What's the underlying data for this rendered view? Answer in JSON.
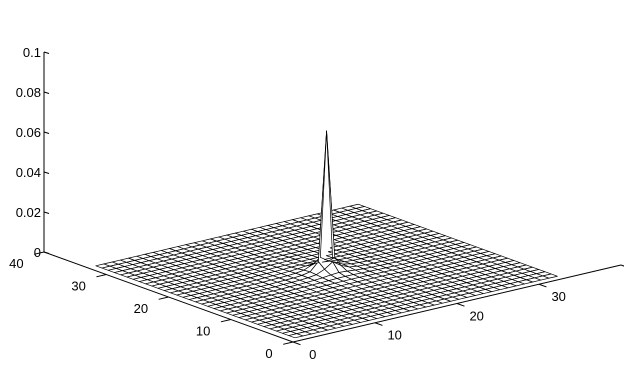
{
  "chart_data": {
    "type": "surface",
    "title": "",
    "xlabel": "",
    "ylabel": "",
    "zlabel": "",
    "xlim": [
      0,
      40
    ],
    "ylim": [
      0,
      40
    ],
    "zlim": [
      0,
      0.1
    ],
    "grid": false,
    "legend": "none",
    "mesh": {
      "x_range": [
        1,
        33
      ],
      "y_range": [
        1,
        33
      ],
      "n_x": 33,
      "n_y": 33,
      "peak_x": 17,
      "peak_y": 17,
      "peak_z": 0.07,
      "description_of_surface": ""
    },
    "x_ticks": [
      {
        "value": 0,
        "label": "0"
      },
      {
        "value": 10,
        "label": "10"
      },
      {
        "value": 20,
        "label": "20"
      },
      {
        "value": 30,
        "label": "30"
      },
      {
        "value": 40,
        "label": "40"
      }
    ],
    "y_ticks": [
      {
        "value": 0,
        "label": "0"
      },
      {
        "value": 10,
        "label": "10"
      },
      {
        "value": 20,
        "label": "20"
      },
      {
        "value": 30,
        "label": "30"
      },
      {
        "value": 40,
        "label": "40"
      }
    ],
    "z_ticks": [
      {
        "value": 0,
        "label": "0"
      },
      {
        "value": 0.02,
        "label": "0.02"
      },
      {
        "value": 0.04,
        "label": "0.04"
      },
      {
        "value": 0.06,
        "label": "0.06"
      },
      {
        "value": 0.08,
        "label": "0.08"
      },
      {
        "value": 0.1,
        "label": "0.1"
      }
    ],
    "colors": {
      "face": "#ffffff",
      "edge": "#000000"
    }
  }
}
